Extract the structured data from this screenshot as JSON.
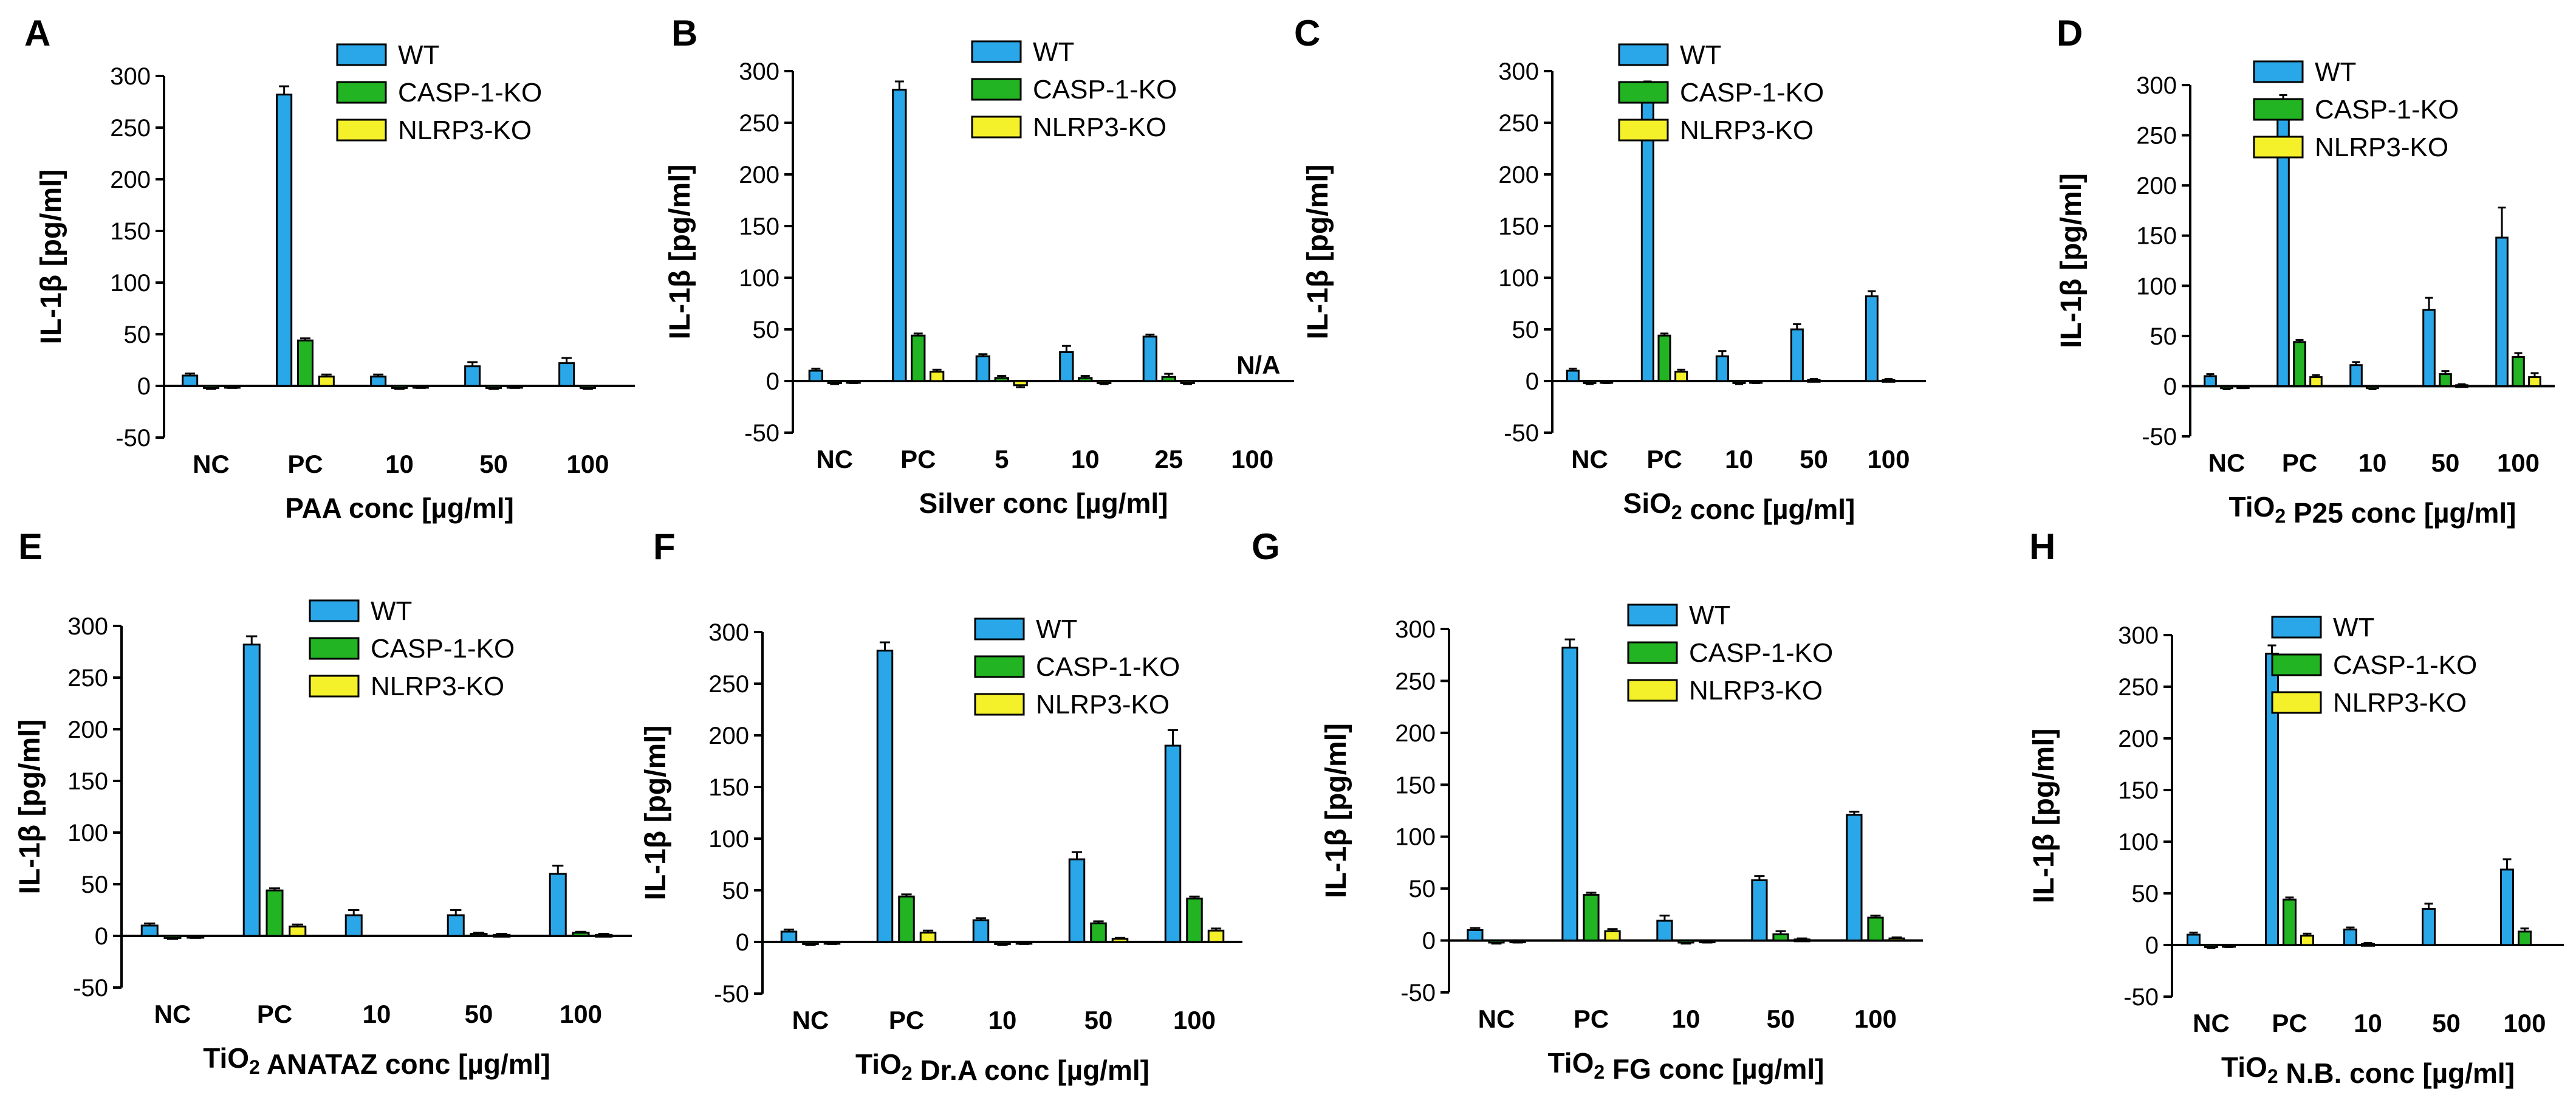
{
  "figure": {
    "series": [
      {
        "name": "WT",
        "color": "#2aa7e8"
      },
      {
        "name": "CASP-1-KO",
        "color": "#22b422"
      },
      {
        "name": "NLRP3-KO",
        "color": "#f4f02a"
      }
    ]
  },
  "chart_data": [
    {
      "panel": "A",
      "type": "bar",
      "ylabel": "IL-1β [pg/ml]",
      "xlabel": "PAA conc [µg/ml]",
      "categories": [
        "NC",
        "PC",
        "10",
        "50",
        "100"
      ],
      "yticks": [
        "300",
        "250",
        "200",
        "150",
        "100",
        "50",
        "0",
        "-50"
      ],
      "ylim": [
        -50,
        300
      ],
      "series": [
        {
          "name": "WT",
          "values": [
            10,
            282,
            9,
            19,
            22
          ],
          "errors": [
            2,
            8,
            2,
            4,
            5
          ]
        },
        {
          "name": "CASP-1-KO",
          "values": [
            -2,
            44,
            -2,
            -2,
            -2
          ],
          "errors": [
            1,
            2,
            1,
            1,
            1
          ]
        },
        {
          "name": "NLRP3-KO",
          "values": [
            -1,
            9,
            -1,
            -1,
            null
          ],
          "errors": [
            1,
            2,
            1,
            1,
            0
          ]
        }
      ],
      "annotations": []
    },
    {
      "panel": "B",
      "type": "bar",
      "ylabel": "IL-1β [pg/ml]",
      "xlabel": "Silver conc [µg/ml]",
      "categories": [
        "NC",
        "PC",
        "5",
        "10",
        "25",
        "100"
      ],
      "yticks": [
        "300",
        "250",
        "200",
        "150",
        "100",
        "50",
        "0",
        "-50"
      ],
      "ylim": [
        -50,
        300
      ],
      "series": [
        {
          "name": "WT",
          "values": [
            10,
            282,
            24,
            28,
            43,
            null
          ],
          "errors": [
            2,
            8,
            2,
            6,
            2,
            0
          ]
        },
        {
          "name": "CASP-1-KO",
          "values": [
            -2,
            44,
            3,
            3,
            4,
            null
          ],
          "errors": [
            1,
            2,
            2,
            2,
            3,
            0
          ]
        },
        {
          "name": "NLRP3-KO",
          "values": [
            -1,
            9,
            -4,
            -2,
            -2,
            null
          ],
          "errors": [
            1,
            2,
            2,
            1,
            1,
            0
          ]
        }
      ],
      "annotations": [
        {
          "text": "N/A",
          "category": "100"
        }
      ]
    },
    {
      "panel": "C",
      "type": "bar",
      "ylabel": "IL-1β [pg/ml]",
      "xlabel": "SiO2 conc [µg/ml]",
      "categories": [
        "NC",
        "PC",
        "10",
        "50",
        "100"
      ],
      "yticks": [
        "300",
        "250",
        "200",
        "150",
        "100",
        "50",
        "0",
        "-50"
      ],
      "ylim": [
        -50,
        300
      ],
      "series": [
        {
          "name": "WT",
          "values": [
            10,
            282,
            24,
            50,
            82
          ],
          "errors": [
            2,
            8,
            5,
            5,
            5
          ]
        },
        {
          "name": "CASP-1-KO",
          "values": [
            -2,
            44,
            -2,
            1,
            1
          ],
          "errors": [
            1,
            2,
            1,
            1,
            1
          ]
        },
        {
          "name": "NLRP3-KO",
          "values": [
            -1,
            9,
            -1,
            null,
            null
          ],
          "errors": [
            1,
            2,
            1,
            0,
            0
          ]
        }
      ],
      "annotations": []
    },
    {
      "panel": "D",
      "type": "bar",
      "ylabel": "IL-1β [pg/ml]",
      "xlabel": "TiO2  P25 conc [µg/ml]",
      "categories": [
        "NC",
        "PC",
        "10",
        "50",
        "100"
      ],
      "yticks": [
        "300",
        "250",
        "200",
        "150",
        "100",
        "50",
        "0",
        "-50"
      ],
      "ylim": [
        -50,
        300
      ],
      "series": [
        {
          "name": "WT",
          "values": [
            10,
            282,
            21,
            76,
            148
          ],
          "errors": [
            2,
            8,
            3,
            12,
            30
          ]
        },
        {
          "name": "CASP-1-KO",
          "values": [
            -2,
            44,
            -2,
            12,
            29
          ],
          "errors": [
            1,
            2,
            1,
            3,
            4
          ]
        },
        {
          "name": "NLRP3-KO",
          "values": [
            -1,
            9,
            null,
            1,
            9
          ],
          "errors": [
            1,
            2,
            0,
            1,
            4
          ]
        }
      ],
      "annotations": []
    },
    {
      "panel": "E",
      "type": "bar",
      "ylabel": "IL-1β [pg/ml]",
      "xlabel": "TiO2 ANATAZ conc [µg/ml]",
      "categories": [
        "NC",
        "PC",
        "10",
        "50",
        "100"
      ],
      "yticks": [
        "300",
        "250",
        "200",
        "150",
        "100",
        "50",
        "0",
        "-50"
      ],
      "ylim": [
        -50,
        300
      ],
      "series": [
        {
          "name": "WT",
          "values": [
            10,
            282,
            20,
            20,
            60
          ],
          "errors": [
            2,
            8,
            5,
            5,
            8
          ]
        },
        {
          "name": "CASP-1-KO",
          "values": [
            -2,
            44,
            null,
            2,
            3
          ],
          "errors": [
            1,
            2,
            0,
            1,
            1
          ]
        },
        {
          "name": "NLRP3-KO",
          "values": [
            -1,
            9,
            null,
            1,
            1
          ],
          "errors": [
            1,
            2,
            0,
            1,
            1
          ]
        }
      ],
      "annotations": []
    },
    {
      "panel": "F",
      "type": "bar",
      "ylabel": "IL-1β [pg/ml]",
      "xlabel": "TiO2 Dr.A conc [µg/ml]",
      "categories": [
        "NC",
        "PC",
        "10",
        "50",
        "100"
      ],
      "yticks": [
        "300",
        "250",
        "200",
        "150",
        "100",
        "50",
        "0",
        "-50"
      ],
      "ylim": [
        -50,
        300
      ],
      "series": [
        {
          "name": "WT",
          "values": [
            10,
            282,
            21,
            80,
            190
          ],
          "errors": [
            2,
            8,
            2,
            7,
            15
          ]
        },
        {
          "name": "CASP-1-KO",
          "values": [
            -2,
            44,
            -2,
            18,
            42
          ],
          "errors": [
            1,
            2,
            1,
            2,
            2
          ]
        },
        {
          "name": "NLRP3-KO",
          "values": [
            -1,
            9,
            -1,
            3,
            11
          ],
          "errors": [
            1,
            2,
            1,
            1,
            2
          ]
        }
      ],
      "annotations": []
    },
    {
      "panel": "G",
      "type": "bar",
      "ylabel": "IL-1β [pg/ml]",
      "xlabel": "TiO2 FG conc [µg/ml]",
      "categories": [
        "NC",
        "PC",
        "10",
        "50",
        "100"
      ],
      "yticks": [
        "300",
        "250",
        "200",
        "150",
        "100",
        "50",
        "0",
        "-50"
      ],
      "ylim": [
        -50,
        300
      ],
      "series": [
        {
          "name": "WT",
          "values": [
            10,
            282,
            19,
            58,
            121
          ],
          "errors": [
            2,
            8,
            5,
            4,
            3
          ]
        },
        {
          "name": "CASP-1-KO",
          "values": [
            -2,
            44,
            -2,
            6,
            22
          ],
          "errors": [
            1,
            2,
            1,
            3,
            2
          ]
        },
        {
          "name": "NLRP3-KO",
          "values": [
            -1,
            9,
            -1,
            1,
            2
          ],
          "errors": [
            1,
            2,
            1,
            1,
            1
          ]
        }
      ],
      "annotations": []
    },
    {
      "panel": "H",
      "type": "bar",
      "ylabel": "IL-1β [pg/ml]",
      "xlabel": "TiO2 N.B. conc [µg/ml]",
      "categories": [
        "NC",
        "PC",
        "10",
        "50",
        "100"
      ],
      "yticks": [
        "300",
        "250",
        "200",
        "150",
        "100",
        "50",
        "0",
        "-50"
      ],
      "ylim": [
        -50,
        300
      ],
      "series": [
        {
          "name": "WT",
          "values": [
            10,
            282,
            15,
            35,
            73
          ],
          "errors": [
            2,
            8,
            2,
            5,
            10
          ]
        },
        {
          "name": "CASP-1-KO",
          "values": [
            -2,
            44,
            1,
            null,
            13
          ],
          "errors": [
            1,
            2,
            1,
            0,
            3
          ]
        },
        {
          "name": "NLRP3-KO",
          "values": [
            -1,
            9,
            null,
            null,
            null
          ],
          "errors": [
            1,
            2,
            0,
            0,
            0
          ]
        }
      ],
      "annotations": []
    }
  ]
}
